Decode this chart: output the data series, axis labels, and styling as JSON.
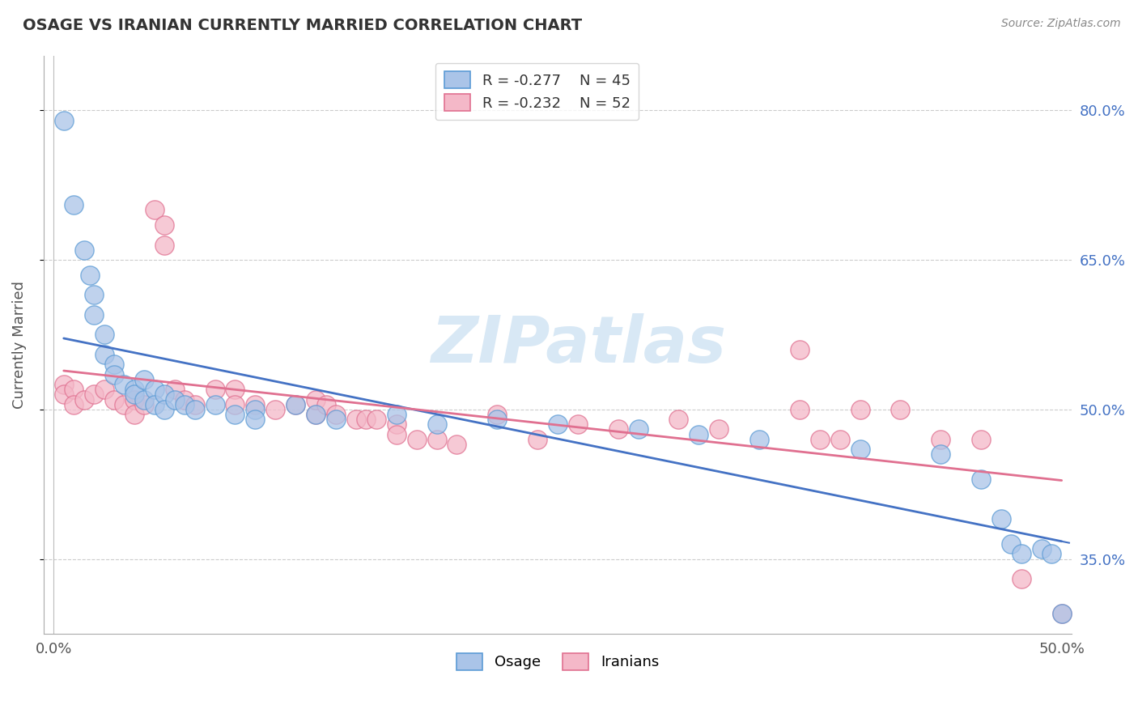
{
  "title": "OSAGE VS IRANIAN CURRENTLY MARRIED CORRELATION CHART",
  "source": "Source: ZipAtlas.com",
  "ylabel": "Currently Married",
  "xlim": [
    -0.005,
    0.505
  ],
  "ylim": [
    0.275,
    0.855
  ],
  "xtick_vals": [
    0.0,
    0.5
  ],
  "xtick_labels": [
    "0.0%",
    "50.0%"
  ],
  "ytick_vals": [
    0.35,
    0.5,
    0.65,
    0.8
  ],
  "ytick_labels": [
    "35.0%",
    "50.0%",
    "65.0%",
    "80.0%"
  ],
  "grid_color": "#cccccc",
  "background_color": "#ffffff",
  "osage_color": "#aac4e8",
  "osage_edge_color": "#5b9bd5",
  "iranian_color": "#f4b8c8",
  "iranian_edge_color": "#e07090",
  "osage_line_color": "#4472c4",
  "iranian_line_color": "#e07090",
  "legend_box_label1": "R = -0.277    N = 45",
  "legend_box_label2": "R = -0.232    N = 52",
  "legend_bottom_label1": "Osage",
  "legend_bottom_label2": "Iranians",
  "watermark": "ZIPatlas",
  "osage_scatter": [
    [
      0.005,
      0.79
    ],
    [
      0.01,
      0.705
    ],
    [
      0.015,
      0.66
    ],
    [
      0.018,
      0.635
    ],
    [
      0.02,
      0.615
    ],
    [
      0.02,
      0.595
    ],
    [
      0.025,
      0.575
    ],
    [
      0.025,
      0.555
    ],
    [
      0.03,
      0.545
    ],
    [
      0.03,
      0.535
    ],
    [
      0.035,
      0.525
    ],
    [
      0.04,
      0.52
    ],
    [
      0.04,
      0.515
    ],
    [
      0.045,
      0.53
    ],
    [
      0.045,
      0.51
    ],
    [
      0.05,
      0.52
    ],
    [
      0.05,
      0.505
    ],
    [
      0.055,
      0.515
    ],
    [
      0.055,
      0.5
    ],
    [
      0.06,
      0.51
    ],
    [
      0.065,
      0.505
    ],
    [
      0.07,
      0.5
    ],
    [
      0.08,
      0.505
    ],
    [
      0.09,
      0.495
    ],
    [
      0.1,
      0.5
    ],
    [
      0.1,
      0.49
    ],
    [
      0.12,
      0.505
    ],
    [
      0.13,
      0.495
    ],
    [
      0.14,
      0.49
    ],
    [
      0.17,
      0.495
    ],
    [
      0.19,
      0.485
    ],
    [
      0.22,
      0.49
    ],
    [
      0.25,
      0.485
    ],
    [
      0.29,
      0.48
    ],
    [
      0.32,
      0.475
    ],
    [
      0.35,
      0.47
    ],
    [
      0.4,
      0.46
    ],
    [
      0.44,
      0.455
    ],
    [
      0.46,
      0.43
    ],
    [
      0.47,
      0.39
    ],
    [
      0.475,
      0.365
    ],
    [
      0.48,
      0.355
    ],
    [
      0.49,
      0.36
    ],
    [
      0.495,
      0.355
    ],
    [
      0.5,
      0.295
    ]
  ],
  "iranian_scatter": [
    [
      0.005,
      0.525
    ],
    [
      0.005,
      0.515
    ],
    [
      0.01,
      0.52
    ],
    [
      0.01,
      0.505
    ],
    [
      0.015,
      0.51
    ],
    [
      0.02,
      0.515
    ],
    [
      0.025,
      0.52
    ],
    [
      0.03,
      0.51
    ],
    [
      0.035,
      0.505
    ],
    [
      0.04,
      0.51
    ],
    [
      0.04,
      0.495
    ],
    [
      0.045,
      0.505
    ],
    [
      0.05,
      0.7
    ],
    [
      0.055,
      0.685
    ],
    [
      0.055,
      0.665
    ],
    [
      0.06,
      0.52
    ],
    [
      0.065,
      0.51
    ],
    [
      0.07,
      0.505
    ],
    [
      0.08,
      0.52
    ],
    [
      0.09,
      0.52
    ],
    [
      0.09,
      0.505
    ],
    [
      0.1,
      0.505
    ],
    [
      0.11,
      0.5
    ],
    [
      0.12,
      0.505
    ],
    [
      0.13,
      0.495
    ],
    [
      0.13,
      0.51
    ],
    [
      0.135,
      0.505
    ],
    [
      0.14,
      0.495
    ],
    [
      0.15,
      0.49
    ],
    [
      0.155,
      0.49
    ],
    [
      0.16,
      0.49
    ],
    [
      0.17,
      0.485
    ],
    [
      0.17,
      0.475
    ],
    [
      0.18,
      0.47
    ],
    [
      0.19,
      0.47
    ],
    [
      0.2,
      0.465
    ],
    [
      0.22,
      0.495
    ],
    [
      0.24,
      0.47
    ],
    [
      0.26,
      0.485
    ],
    [
      0.28,
      0.48
    ],
    [
      0.31,
      0.49
    ],
    [
      0.33,
      0.48
    ],
    [
      0.37,
      0.56
    ],
    [
      0.37,
      0.5
    ],
    [
      0.38,
      0.47
    ],
    [
      0.39,
      0.47
    ],
    [
      0.4,
      0.5
    ],
    [
      0.42,
      0.5
    ],
    [
      0.44,
      0.47
    ],
    [
      0.46,
      0.47
    ],
    [
      0.48,
      0.33
    ],
    [
      0.5,
      0.295
    ]
  ]
}
